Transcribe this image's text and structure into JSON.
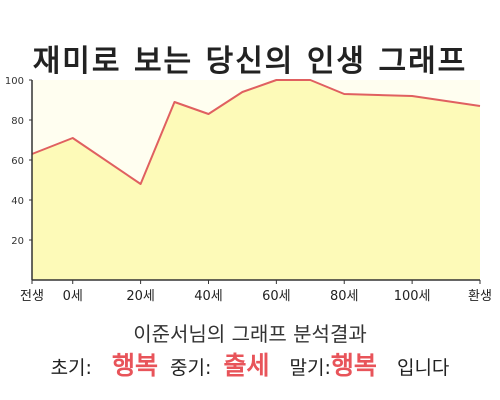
{
  "title": "재미로 보는 당신의 인생 그래프",
  "result_heading": "이준서님의 그래프 분석결과",
  "summary": {
    "early_label": "초기:",
    "early_value": "행복",
    "middle_label": "중기:",
    "middle_value": "출세",
    "late_label": "말기:",
    "late_value": "행복",
    "suffix": "입니다"
  },
  "chart_data": {
    "type": "area",
    "title": "재미로 보는 당신의 인생 그래프",
    "xlabel": "",
    "ylabel": "",
    "x_ticks": [
      "전생",
      "0세",
      "20세",
      "40세",
      "60세",
      "80세",
      "100세",
      "환생"
    ],
    "y_ticks": [
      20,
      40,
      60,
      80,
      100
    ],
    "ylim": [
      0,
      100
    ],
    "grid": false,
    "series": [
      {
        "values": [
          {
            "x": "전생",
            "y": 63
          },
          {
            "x": "0세",
            "y": 71
          },
          {
            "x": "20세",
            "y": 48
          },
          {
            "x": "30세",
            "y": 89
          },
          {
            "x": "40세",
            "y": 83
          },
          {
            "x": "50세",
            "y": 94
          },
          {
            "x": "60세",
            "y": 100
          },
          {
            "x": "70세",
            "y": 100
          },
          {
            "x": "80세",
            "y": 93
          },
          {
            "x": "100세",
            "y": 92
          },
          {
            "x": "환생",
            "y": 87
          }
        ]
      }
    ],
    "colors": {
      "line": "#e06060",
      "fill": "#fdfab8",
      "plot_bg": "#fffef0",
      "axis": "#333333"
    }
  }
}
